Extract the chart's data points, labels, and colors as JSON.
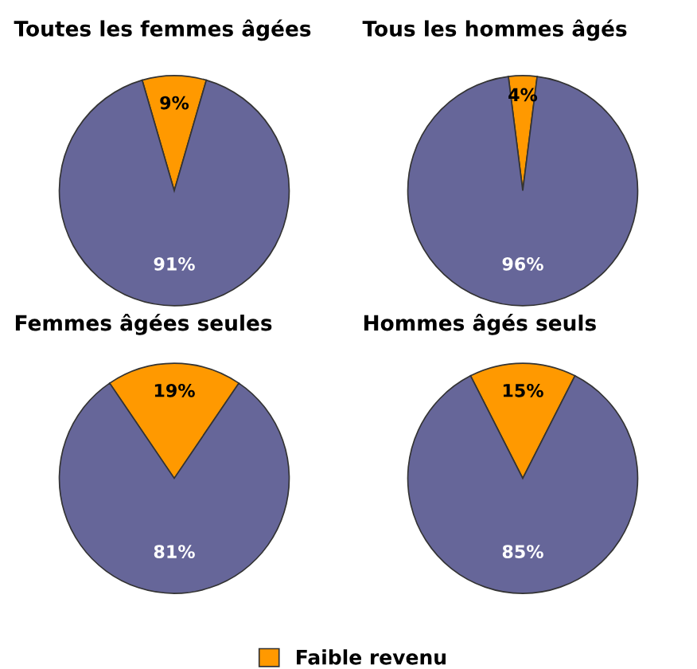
{
  "chart_data": [
    {
      "type": "pie",
      "title": "Toutes les femmes âgées",
      "categories": [
        null,
        null
      ],
      "values": [
        9,
        91
      ],
      "colors": [
        "#ff9900",
        "#666699"
      ],
      "value_labels": [
        "9%",
        "91%"
      ]
    },
    {
      "type": "pie",
      "title": "Tous les hommes âgés",
      "categories": [
        null,
        null
      ],
      "values": [
        4,
        96
      ],
      "colors": [
        "#ff9900",
        "#666699"
      ],
      "value_labels": [
        "4%",
        "96%"
      ]
    },
    {
      "type": "pie",
      "title": "Femmes âgées seules",
      "categories": [
        null,
        null
      ],
      "values": [
        19,
        81
      ],
      "colors": [
        "#ff9900",
        "#666699"
      ],
      "value_labels": [
        "19%",
        "81%"
      ]
    },
    {
      "type": "pie",
      "title": "Hommes âgés seuls",
      "categories": [
        "Faible revenu",
        null
      ],
      "values": [
        15,
        85
      ],
      "colors": [
        "#ff9900",
        "#666699"
      ],
      "value_labels": [
        "15%",
        "85%"
      ],
      "legend": "bottom"
    }
  ]
}
